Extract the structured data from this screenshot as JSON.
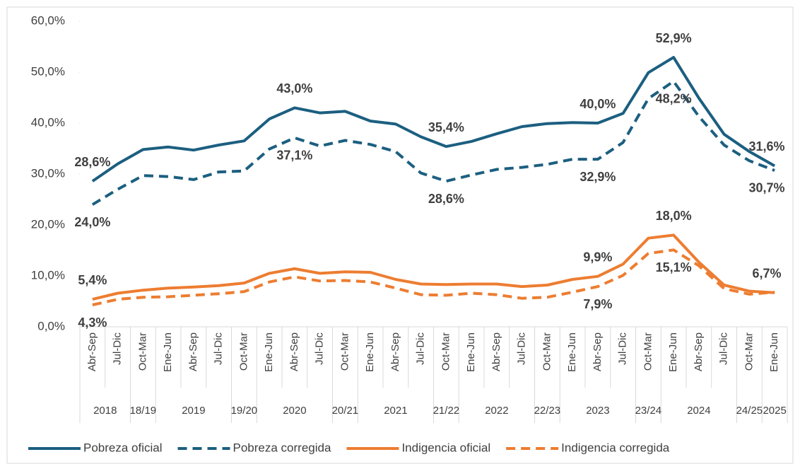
{
  "chart_data": {
    "type": "line",
    "categories": [
      "Abr-Sep",
      "Jul-Dic",
      "Oct-Mar",
      "Ene-Jun",
      "Abr-Sep",
      "Jul-Dic",
      "Oct-Mar",
      "Ene-Jun",
      "Abr-Sep",
      "Jul-Dic",
      "Oct-Mar",
      "Ene-Jun",
      "Abr-Sep",
      "Jul-Dic",
      "Oct-Mar",
      "Ene-Jun",
      "Abr-Sep",
      "Jul-Dic",
      "Oct-Mar",
      "Ene-Jun",
      "Abr-Sep",
      "Jul-Dic",
      "Oct-Mar",
      "Ene-Jun",
      "Abr-Sep",
      "Jul-Dic",
      "Oct-Mar",
      "Ene-Jun"
    ],
    "category_groups": [
      "2018",
      null,
      "18/19",
      "2019",
      null,
      null,
      "19/20",
      "2020",
      null,
      null,
      "20/21",
      "2021",
      null,
      null,
      "21/22",
      "2022",
      null,
      null,
      "22/23",
      "2023",
      null,
      null,
      "23/24",
      "2024",
      null,
      null,
      "24/25",
      "2025"
    ],
    "series": [
      {
        "name": "Pobreza oficial",
        "color": "#1c5f80",
        "dash": false,
        "values": [
          28.6,
          32.0,
          34.8,
          35.3,
          34.7,
          35.7,
          36.5,
          40.8,
          43.0,
          42.0,
          42.3,
          40.4,
          39.8,
          37.3,
          35.4,
          36.4,
          37.9,
          39.3,
          39.9,
          40.1,
          40.0,
          41.9,
          49.9,
          52.9,
          44.9,
          37.8,
          34.4,
          31.6
        ],
        "value_labels": [
          "28,6%",
          null,
          null,
          null,
          null,
          null,
          null,
          null,
          "43,0%",
          null,
          null,
          null,
          null,
          null,
          "35,4%",
          null,
          null,
          null,
          null,
          null,
          "40,0%",
          null,
          null,
          "52,9%",
          null,
          null,
          null,
          "31,6%"
        ]
      },
      {
        "name": "Pobreza corregida",
        "color": "#1c5f80",
        "dash": true,
        "values": [
          24.0,
          27.0,
          29.7,
          29.5,
          28.9,
          30.4,
          30.6,
          34.9,
          37.1,
          35.5,
          36.6,
          35.8,
          34.4,
          30.2,
          28.6,
          29.8,
          30.9,
          31.3,
          31.9,
          32.9,
          32.9,
          36.2,
          44.8,
          48.2,
          41.3,
          35.7,
          32.6,
          30.7
        ],
        "value_labels": [
          "24,0%",
          null,
          null,
          null,
          null,
          null,
          null,
          null,
          "37,1%",
          null,
          null,
          null,
          null,
          null,
          "28,6%",
          null,
          null,
          null,
          null,
          null,
          "32,9%",
          null,
          null,
          "48,2%",
          null,
          null,
          null,
          "30,7%"
        ]
      },
      {
        "name": "Indigencia oficial",
        "color": "#ed7d31",
        "dash": false,
        "values": [
          5.4,
          6.6,
          7.2,
          7.6,
          7.8,
          8.1,
          8.6,
          10.5,
          11.4,
          10.5,
          10.8,
          10.7,
          9.3,
          8.4,
          8.3,
          8.4,
          8.4,
          7.9,
          8.2,
          9.3,
          9.9,
          12.3,
          17.4,
          18.0,
          12.7,
          8.2,
          7.0,
          6.7
        ],
        "value_labels": [
          "5,4%",
          null,
          null,
          null,
          null,
          null,
          null,
          null,
          null,
          null,
          null,
          null,
          null,
          null,
          null,
          null,
          null,
          null,
          null,
          null,
          "9,9%",
          null,
          null,
          "18,0%",
          null,
          null,
          null,
          "6,7%"
        ]
      },
      {
        "name": "Indigencia corregida",
        "color": "#ed7d31",
        "dash": true,
        "values": [
          4.3,
          5.4,
          5.8,
          5.9,
          6.2,
          6.5,
          6.9,
          8.8,
          9.8,
          9.0,
          9.1,
          8.8,
          7.6,
          6.3,
          6.2,
          6.6,
          6.3,
          5.6,
          5.8,
          6.8,
          7.9,
          10.1,
          14.4,
          15.1,
          12.0,
          7.5,
          6.4,
          6.8
        ],
        "value_labels": [
          "4,3%",
          null,
          null,
          null,
          null,
          null,
          null,
          null,
          null,
          null,
          null,
          null,
          null,
          null,
          null,
          null,
          null,
          null,
          null,
          null,
          "7,9%",
          null,
          null,
          "15,1%",
          null,
          null,
          null,
          null
        ]
      }
    ],
    "ylim": [
      0,
      60
    ],
    "yticks": [
      {
        "value": 0,
        "label": "0,0%"
      },
      {
        "value": 10,
        "label": "10,0%"
      },
      {
        "value": 20,
        "label": "20,0%"
      },
      {
        "value": 30,
        "label": "30,0%"
      },
      {
        "value": 40,
        "label": "40,0%"
      },
      {
        "value": 50,
        "label": "50,0%"
      },
      {
        "value": 60,
        "label": "60,0%"
      }
    ],
    "grid": false,
    "legend": "bottom"
  }
}
